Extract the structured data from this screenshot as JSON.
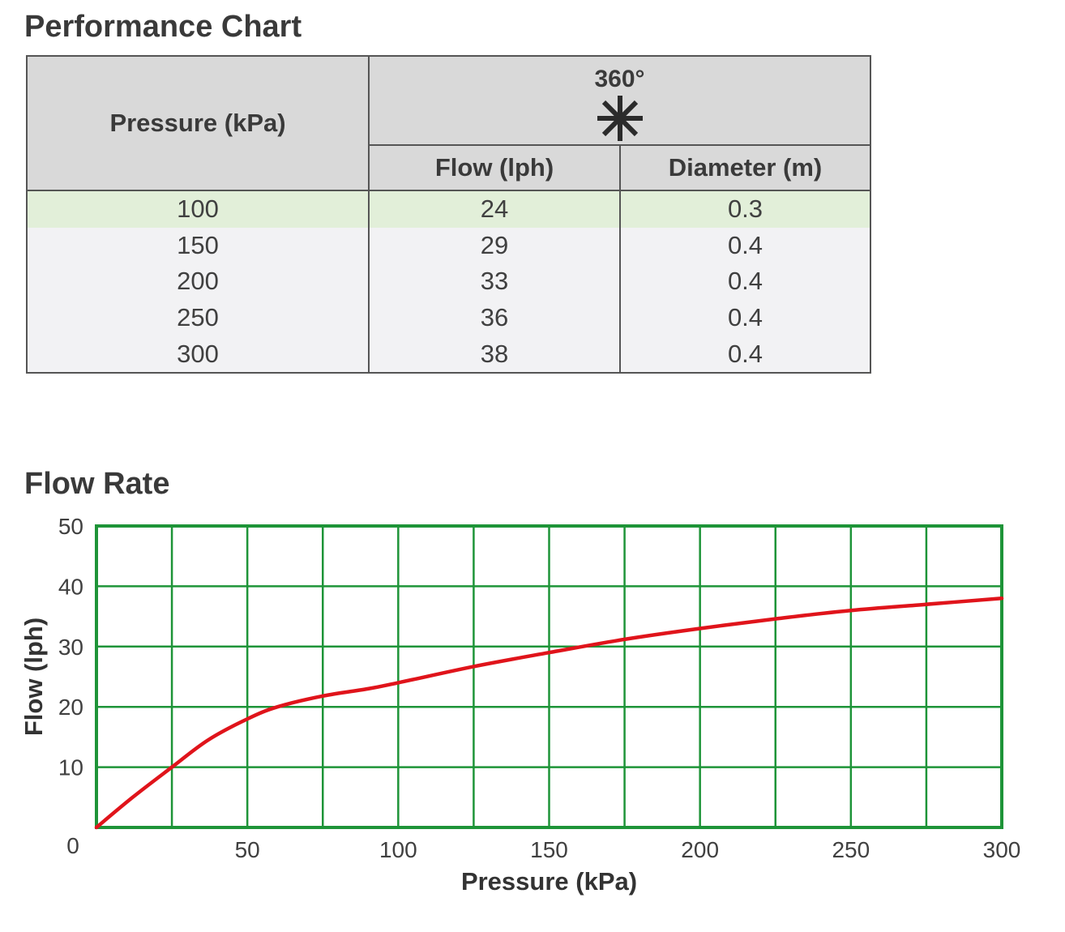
{
  "performance": {
    "title": "Performance Chart",
    "pressure_header": "Pressure (kPa)",
    "spray_header": "360°",
    "spray_icon": "asterisk-icon",
    "flow_header": "Flow (lph)",
    "diameter_header": "Diameter (m)",
    "highlight_color": "#e2efd9",
    "rows": [
      {
        "pressure": "100",
        "flow": "24",
        "diameter": "0.3"
      },
      {
        "pressure": "150",
        "flow": "29",
        "diameter": "0.4"
      },
      {
        "pressure": "200",
        "flow": "33",
        "diameter": "0.4"
      },
      {
        "pressure": "250",
        "flow": "36",
        "diameter": "0.4"
      },
      {
        "pressure": "300",
        "flow": "38",
        "diameter": "0.4"
      }
    ]
  },
  "flow_rate": {
    "title": "Flow Rate"
  },
  "chart_data": {
    "type": "line",
    "title": "Flow Rate",
    "xlabel": "Pressure (kPa)",
    "ylabel": "Flow (lph)",
    "xlim": [
      0,
      300
    ],
    "ylim": [
      0,
      50
    ],
    "x_ticks": [
      0,
      50,
      100,
      150,
      200,
      250,
      300
    ],
    "x_tick_labels": [
      "0",
      "50",
      "100",
      "150",
      "200",
      "250",
      "300"
    ],
    "y_ticks": [
      10,
      20,
      30,
      40,
      50
    ],
    "y_tick_labels": [
      "10",
      "20",
      "30",
      "40",
      "50"
    ],
    "grid": true,
    "grid_color": "#1e9438",
    "line_color": "#e0141b",
    "series": [
      {
        "x": [
          0,
          12,
          25,
          37,
          50,
          60,
          75,
          90,
          100,
          125,
          150,
          175,
          200,
          225,
          250,
          275,
          300
        ],
        "y": [
          0,
          5,
          10,
          14.5,
          18,
          20,
          21.8,
          23,
          24,
          26.7,
          29,
          31.2,
          33,
          34.6,
          36,
          37,
          38
        ]
      }
    ]
  }
}
